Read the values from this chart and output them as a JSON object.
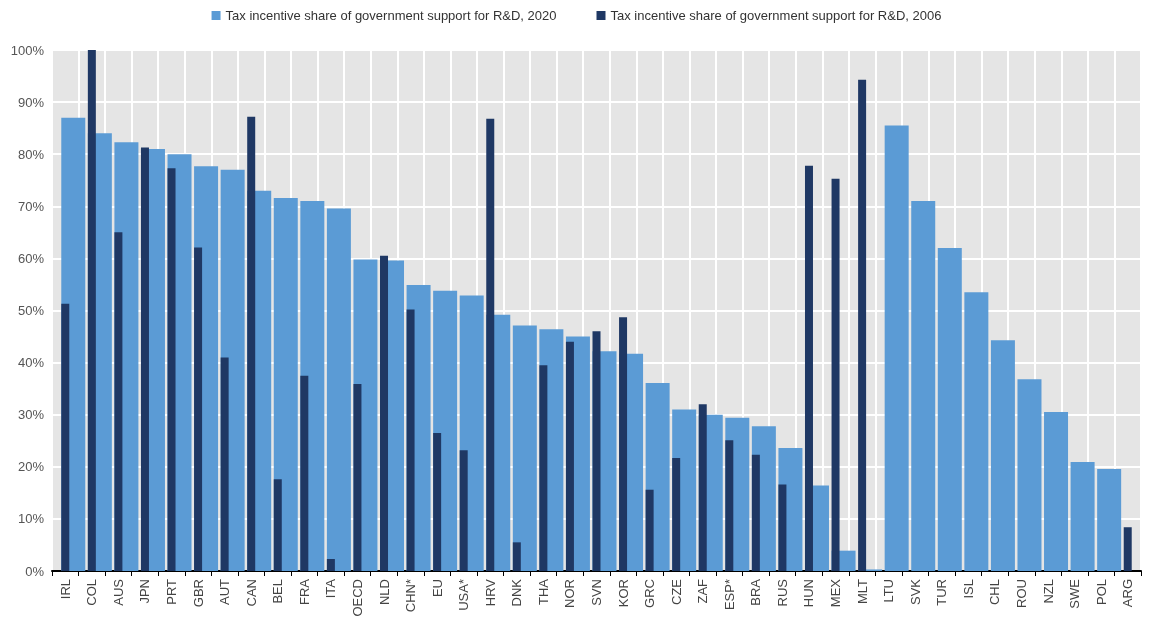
{
  "chart_data": {
    "type": "bar",
    "categories": [
      "IRL",
      "COL",
      "AUS",
      "JPN",
      "PRT",
      "GBR",
      "AUT",
      "CAN",
      "BEL",
      "FRA",
      "ITA",
      "OECD",
      "NLD",
      "CHN*",
      "EU",
      "USA*",
      "HRV",
      "DNK",
      "THA",
      "NOR",
      "SVN",
      "KOR",
      "GRC",
      "CZE",
      "ZAF",
      "ESP*",
      "BRA",
      "RUS",
      "HUN",
      "MEX",
      "MLT",
      "LTU",
      "SVK",
      "TUR",
      "ISL",
      "CHL",
      "ROU",
      "NZL",
      "SWE",
      "POL",
      "ARG"
    ],
    "series": [
      {
        "name": "Tax incentive share of government support for R&D, 2020",
        "color": "#5b9bd5",
        "values": [
          87,
          84,
          82.3,
          81,
          80,
          77.7,
          77,
          73,
          71.6,
          71,
          69.6,
          59.8,
          59.6,
          54.9,
          53.8,
          52.9,
          49.2,
          47.1,
          46.4,
          45,
          42.2,
          41.7,
          36.1,
          31,
          30,
          29.4,
          27.8,
          23.6,
          16.4,
          3.9,
          0.3,
          85.5,
          71,
          62,
          53.5,
          44.3,
          36.8,
          30.5,
          20.9,
          19.6,
          null
        ]
      },
      {
        "name": "Tax incentive share of government support for R&D, 2006",
        "color": "#1f3864",
        "values": [
          51.3,
          100,
          65,
          81.3,
          77.3,
          62.1,
          41,
          87.2,
          17.6,
          37.5,
          2.3,
          35.9,
          60.5,
          50.2,
          26.5,
          23.2,
          86.8,
          5.5,
          39.5,
          44,
          46,
          48.7,
          15.6,
          21.7,
          32,
          25.1,
          22.3,
          16.6,
          77.8,
          75.3,
          94.3,
          null,
          null,
          null,
          null,
          null,
          null,
          null,
          null,
          null,
          8.4
        ]
      }
    ],
    "ylim": [
      0,
      100
    ],
    "yticks": [
      {
        "value": 0,
        "label": "0%"
      },
      {
        "value": 10,
        "label": "10%"
      },
      {
        "value": 20,
        "label": "20%"
      },
      {
        "value": 30,
        "label": "30%"
      },
      {
        "value": 40,
        "label": "40%"
      },
      {
        "value": 50,
        "label": "50%"
      },
      {
        "value": 60,
        "label": "60%"
      },
      {
        "value": 70,
        "label": "70%"
      },
      {
        "value": 80,
        "label": "80%"
      },
      {
        "value": 90,
        "label": "90%"
      },
      {
        "value": 100,
        "label": "100%"
      }
    ],
    "grid": true,
    "legend": "top"
  }
}
